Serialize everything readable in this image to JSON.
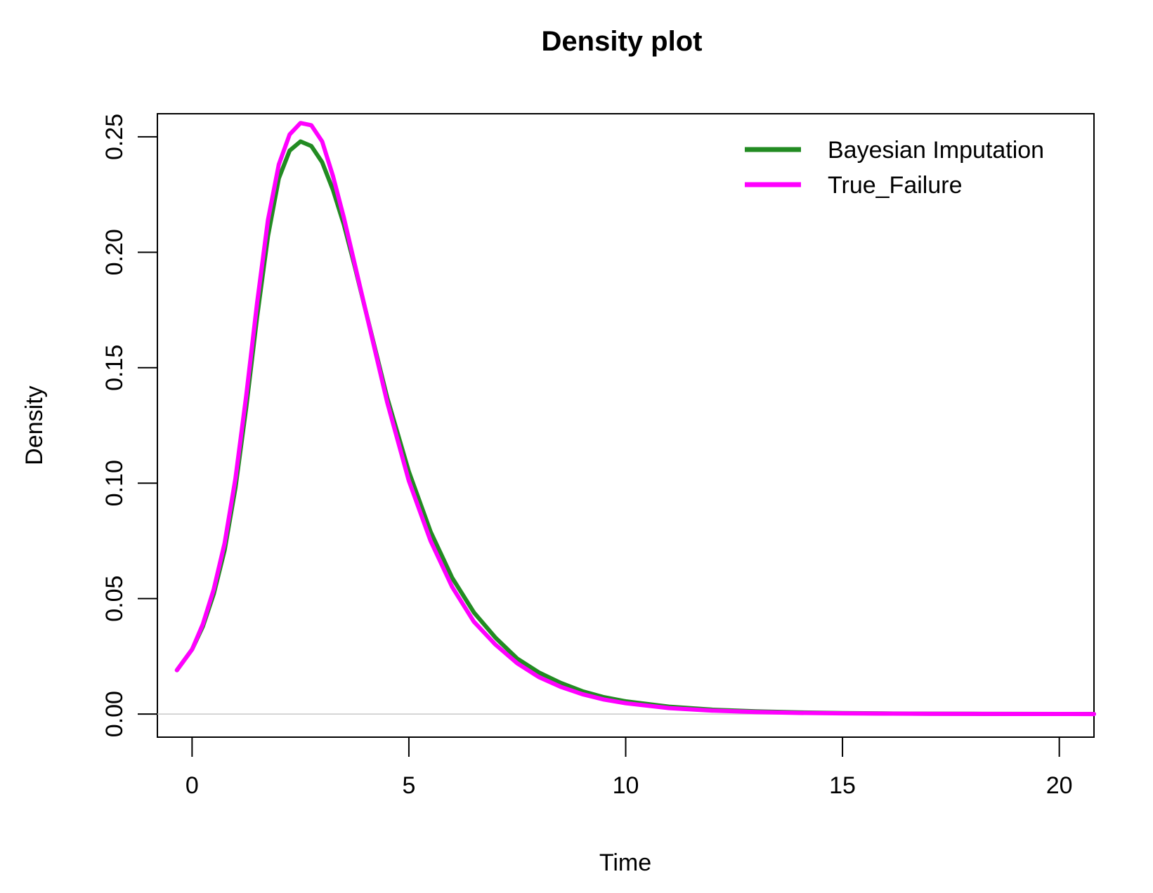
{
  "chart_data": {
    "type": "line",
    "title": "Density plot",
    "xlabel": "Time",
    "ylabel": "Density",
    "xlim": [
      -0.8,
      20.8
    ],
    "ylim": [
      -0.01,
      0.26
    ],
    "x_ticks": [
      0,
      5,
      10,
      15,
      20
    ],
    "x_tick_labels": [
      "0",
      "5",
      "10",
      "15",
      "20"
    ],
    "y_ticks": [
      0.0,
      0.05,
      0.1,
      0.15,
      0.2,
      0.25
    ],
    "y_tick_labels": [
      "0.00",
      "0.05",
      "0.10",
      "0.15",
      "0.20",
      "0.25"
    ],
    "grid": false,
    "baseline": 0,
    "legend_position": "top-right",
    "series": [
      {
        "name": "Bayesian Imputation",
        "color": "#228B22",
        "x": [
          -0.35,
          0,
          0.25,
          0.5,
          0.75,
          1.0,
          1.25,
          1.5,
          1.75,
          2.0,
          2.25,
          2.5,
          2.75,
          3.0,
          3.25,
          3.5,
          3.75,
          4.0,
          4.5,
          5.0,
          5.5,
          6.0,
          6.5,
          7.0,
          7.5,
          8.0,
          8.5,
          9.0,
          9.5,
          10.0,
          11.0,
          12.0,
          13.0,
          14.0,
          15.0,
          16.0,
          17.0,
          18.0,
          19.0,
          20.0,
          20.8
        ],
        "y": [
          0.019,
          0.028,
          0.038,
          0.052,
          0.071,
          0.098,
          0.133,
          0.172,
          0.207,
          0.232,
          0.244,
          0.248,
          0.246,
          0.239,
          0.227,
          0.212,
          0.194,
          0.175,
          0.137,
          0.105,
          0.079,
          0.059,
          0.044,
          0.033,
          0.024,
          0.018,
          0.0135,
          0.0099,
          0.0073,
          0.0055,
          0.0032,
          0.0019,
          0.0012,
          0.0007,
          0.0004,
          0.00025,
          0.00015,
          0.0001,
          6e-05,
          4e-05,
          3e-05
        ]
      },
      {
        "name": "True_Failure",
        "color": "#FF00FF",
        "x": [
          -0.35,
          0,
          0.25,
          0.5,
          0.75,
          1.0,
          1.25,
          1.5,
          1.75,
          2.0,
          2.25,
          2.5,
          2.75,
          3.0,
          3.25,
          3.5,
          3.75,
          4.0,
          4.5,
          5.0,
          5.5,
          6.0,
          6.5,
          7.0,
          7.5,
          8.0,
          8.5,
          9.0,
          9.5,
          10.0,
          11.0,
          12.0,
          13.0,
          14.0,
          15.0,
          16.0,
          17.0,
          18.0,
          19.0,
          20.0,
          20.8
        ],
        "y": [
          0.019,
          0.028,
          0.039,
          0.054,
          0.074,
          0.102,
          0.138,
          0.178,
          0.214,
          0.238,
          0.251,
          0.256,
          0.255,
          0.248,
          0.233,
          0.215,
          0.195,
          0.175,
          0.135,
          0.101,
          0.075,
          0.055,
          0.04,
          0.03,
          0.022,
          0.016,
          0.0118,
          0.0086,
          0.0063,
          0.0047,
          0.0026,
          0.0015,
          0.0009,
          0.0005,
          0.0003,
          0.00018,
          0.0001,
          6e-05,
          4e-05,
          2e-05,
          1e-05
        ]
      }
    ]
  }
}
